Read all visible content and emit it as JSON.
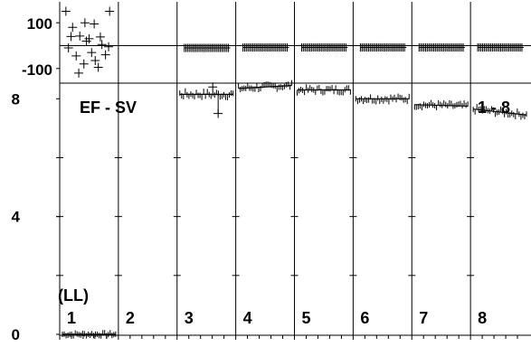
{
  "chart_data": [
    {
      "type": "scatter",
      "panel": "top",
      "title": "",
      "xlabel": "",
      "ylabel": "",
      "y_ticks": [
        "100",
        "-100"
      ],
      "ylim": [
        -160,
        160
      ],
      "reference_line": 0,
      "grid": false,
      "segments": [
        {
          "label": "1",
          "points": [
            {
              "x": 0.05,
              "y": 150
            },
            {
              "x": 0.18,
              "y": 80
            },
            {
              "x": 0.32,
              "y": 42
            },
            {
              "x": 0.45,
              "y": 20
            },
            {
              "x": 0.6,
              "y": 95
            },
            {
              "x": 0.72,
              "y": 38
            },
            {
              "x": 0.9,
              "y": 150
            },
            {
              "x": 0.1,
              "y": -10
            },
            {
              "x": 0.25,
              "y": -45
            },
            {
              "x": 0.4,
              "y": -80
            },
            {
              "x": 0.55,
              "y": -30
            },
            {
              "x": 0.68,
              "y": -95
            },
            {
              "x": 0.82,
              "y": -40
            },
            {
              "x": 0.3,
              "y": -120
            },
            {
              "x": 0.5,
              "y": 30
            },
            {
              "x": 0.75,
              "y": 5
            },
            {
              "x": 0.15,
              "y": 40
            },
            {
              "x": 0.62,
              "y": -65
            },
            {
              "x": 0.88,
              "y": -5
            },
            {
              "x": 0.42,
              "y": 100
            }
          ]
        },
        {
          "label": "2",
          "points": []
        },
        {
          "label": "3",
          "mean": -10,
          "spread": 18
        },
        {
          "label": "4",
          "mean": -8,
          "spread": 18
        },
        {
          "label": "5",
          "mean": -8,
          "spread": 18
        },
        {
          "label": "6",
          "mean": -8,
          "spread": 18
        },
        {
          "label": "7",
          "mean": -8,
          "spread": 18
        },
        {
          "label": "8",
          "mean": -8,
          "spread": 18
        }
      ]
    },
    {
      "type": "scatter",
      "panel": "bottom",
      "title": "EF - SV",
      "annotation": "1 - 8",
      "first_label": "(LL)",
      "xlabel": "",
      "ylabel": "",
      "y_ticks": [
        "8",
        "4",
        "0"
      ],
      "ylim": [
        0,
        8.5
      ],
      "grid": false,
      "segments": [
        {
          "label": "1",
          "mean": 0.1,
          "spread": 0.06,
          "start": 0.0,
          "end": 0.0
        },
        {
          "label": "2",
          "mean": null
        },
        {
          "label": "3",
          "mean": 8.15,
          "spread": 0.12,
          "start": 8.15,
          "end": 8.15,
          "outlier": 7.5
        },
        {
          "label": "4",
          "mean": 8.4,
          "spread": 0.1,
          "start": 8.35,
          "end": 8.45
        },
        {
          "label": "5",
          "mean": 8.3,
          "spread": 0.1,
          "start": 8.3,
          "end": 8.3
        },
        {
          "label": "6",
          "mean": 8.0,
          "spread": 0.1,
          "start": 8.0,
          "end": 8.0
        },
        {
          "label": "7",
          "mean": 7.8,
          "spread": 0.1,
          "start": 7.8,
          "end": 7.75
        },
        {
          "label": "8",
          "mean": 7.6,
          "spread": 0.1,
          "start": 7.65,
          "end": 7.45
        }
      ]
    }
  ]
}
